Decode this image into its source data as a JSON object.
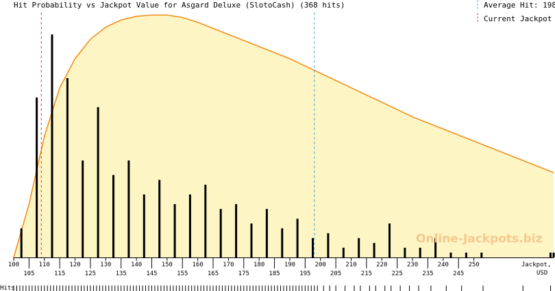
{
  "chart_data": {
    "type": "bar",
    "title": "Hit Probability vs Jackpot Value for Asgard Deluxe (SlotoCash) (368 hits)",
    "xlabel": "Jackpot, USD",
    "xlabel_line1": "Jackpot,",
    "xlabel_line2": "USD",
    "hits_label": "Hits:",
    "watermark": "Online-Jackpots.biz",
    "legend": {
      "average_label": "Average Hit: 198",
      "current_label": "Current Jackpot",
      "average_color": "#5aa8d8",
      "current_color": "#c0504d"
    },
    "average_hit": 198,
    "current_jackpot": 109,
    "xlim": [
      100,
      276
    ],
    "ticks_top": [
      100,
      110,
      120,
      130,
      140,
      150,
      160,
      170,
      180,
      190,
      200,
      210,
      220,
      230,
      240,
      250
    ],
    "ticks_bottom": [
      105,
      115,
      125,
      135,
      145,
      155,
      165,
      175,
      185,
      195,
      205,
      215,
      225,
      235,
      245
    ],
    "bars": {
      "x": [
        102.5,
        107.5,
        112.5,
        117.5,
        122.5,
        127.5,
        132.5,
        137.5,
        142.5,
        147.5,
        152.5,
        157.5,
        162.5,
        167.5,
        172.5,
        177.5,
        182.5,
        187.5,
        192.5,
        197.5,
        202.5,
        207.5,
        212.5,
        217.5,
        222.5,
        227.5,
        232.5,
        237.5,
        242.5,
        247.5,
        252.5,
        275,
        276
      ],
      "values": [
        12,
        66,
        92,
        74,
        40,
        62,
        34,
        40,
        26,
        32,
        22,
        26,
        30,
        20,
        22,
        14,
        20,
        12,
        16,
        8,
        10,
        4,
        8,
        6,
        14,
        4,
        4,
        8,
        2,
        2,
        2,
        2,
        2
      ],
      "ylim": [
        0,
        100
      ],
      "color": "#000000"
    },
    "curve": {
      "x": [
        100,
        105,
        110,
        115,
        120,
        125,
        130,
        135,
        140,
        145,
        150,
        155,
        160,
        170,
        180,
        190,
        200,
        210,
        220,
        230,
        240,
        250,
        260,
        270,
        276
      ],
      "values": [
        0,
        22,
        50,
        70,
        82,
        90,
        95,
        98,
        99.5,
        100,
        100,
        99,
        97,
        92,
        87,
        82,
        76,
        70,
        64,
        58,
        53,
        48,
        43,
        38,
        35
      ],
      "ylim": [
        0,
        100
      ],
      "stroke": "#f0901e",
      "fill": "#fdf5c4"
    },
    "hit_markers": [
      100,
      101,
      102,
      103,
      104,
      105,
      106,
      107,
      108,
      109,
      110,
      111,
      112,
      113,
      114,
      115,
      116,
      117,
      118,
      119,
      120,
      121,
      122,
      123,
      124,
      125,
      126,
      127,
      128,
      129,
      130,
      131,
      132,
      133,
      134,
      135,
      136,
      137,
      138,
      139,
      140,
      141,
      142,
      143,
      144,
      145,
      146,
      147,
      148,
      149,
      150,
      151,
      152,
      153,
      154,
      155,
      156,
      157,
      158,
      159,
      160,
      161,
      162,
      163,
      164,
      165,
      166,
      167,
      168,
      169,
      170,
      171,
      172,
      173,
      174,
      175,
      176,
      177,
      178,
      179,
      180,
      181,
      182,
      183,
      184,
      185,
      186,
      187,
      188,
      189,
      190,
      191,
      192,
      193,
      194,
      195,
      196,
      197,
      198,
      199,
      201,
      203,
      205,
      208,
      211,
      213,
      216,
      218,
      221,
      223,
      226,
      229,
      232,
      236,
      241,
      246,
      253,
      266,
      275
    ],
    "grid": false
  }
}
